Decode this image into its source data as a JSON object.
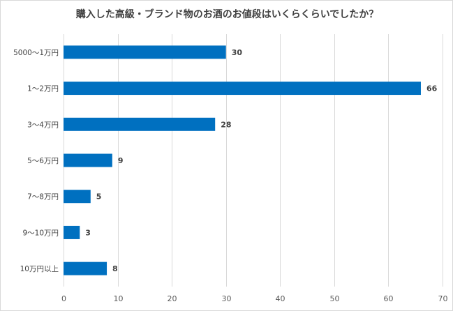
{
  "chart_data": {
    "type": "bar",
    "orientation": "horizontal",
    "title": "購入した高級・ブランド物のお酒のお値段はいくらくらいでしたか？",
    "categories": [
      "5000〜1万円",
      "1〜2万円",
      "3〜4万円",
      "5〜6万円",
      "7〜8万円",
      "9〜10万円",
      "10万円以上"
    ],
    "values": [
      30,
      66,
      28,
      9,
      5,
      3,
      8
    ],
    "xlim": [
      0,
      70
    ],
    "xticks": [
      0,
      10,
      20,
      30,
      40,
      50,
      60,
      70
    ],
    "data_labels": true,
    "grid": "vertical",
    "legend": "none",
    "bar_color": "#0070c0",
    "grid_color": "#d9d9d9"
  }
}
